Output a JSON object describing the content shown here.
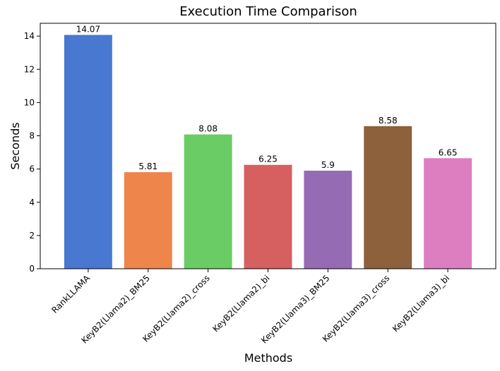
{
  "chart_data": {
    "type": "bar",
    "title": "Execution Time Comparison",
    "xlabel": "Methods",
    "ylabel": "Seconds",
    "categories": [
      "RankLLAMA",
      "KeyB2(Llama2)_BM25",
      "KeyB2(Llama2)_cross",
      "KeyB2(Llama2)_bi",
      "KeyB2(Llama3)_BM25",
      "KeyB2(Llama3)_cross",
      "KeyB2(Llama3)_bi"
    ],
    "values": [
      14.07,
      5.81,
      8.08,
      6.25,
      5.9,
      8.58,
      6.65
    ],
    "data_labels": [
      "14.07",
      "5.81",
      "8.08",
      "6.25",
      "5.9",
      "8.58",
      "6.65"
    ],
    "colors": [
      "#4878d0",
      "#ee854a",
      "#6acc64",
      "#d65f5f",
      "#956cb4",
      "#8c613c",
      "#dc7ec0"
    ],
    "yticks": [
      0,
      2,
      4,
      6,
      8,
      10,
      12,
      14
    ],
    "ylim": [
      0,
      14.77
    ],
    "grid": false,
    "legend": "none"
  }
}
